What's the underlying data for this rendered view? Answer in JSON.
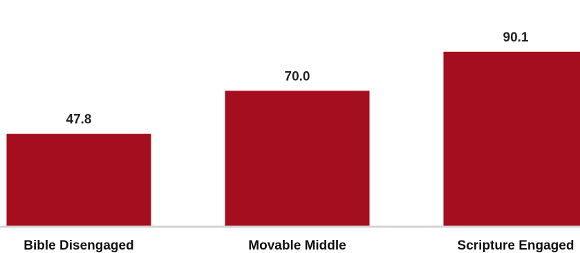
{
  "chart_data": {
    "type": "bar",
    "categories": [
      "Bible Disengaged",
      "Movable Middle",
      "Scripture Engaged"
    ],
    "values": [
      47.8,
      70.0,
      90.1
    ],
    "value_labels": [
      "47.8",
      "70.0",
      "90.1"
    ],
    "title": "",
    "xlabel": "",
    "ylabel": "",
    "ylim": [
      0,
      100
    ],
    "grid": false,
    "legend": "none",
    "colors": {
      "bar": "#A50E1E",
      "baseline": "#D3D3D3",
      "text": "#222222"
    }
  }
}
